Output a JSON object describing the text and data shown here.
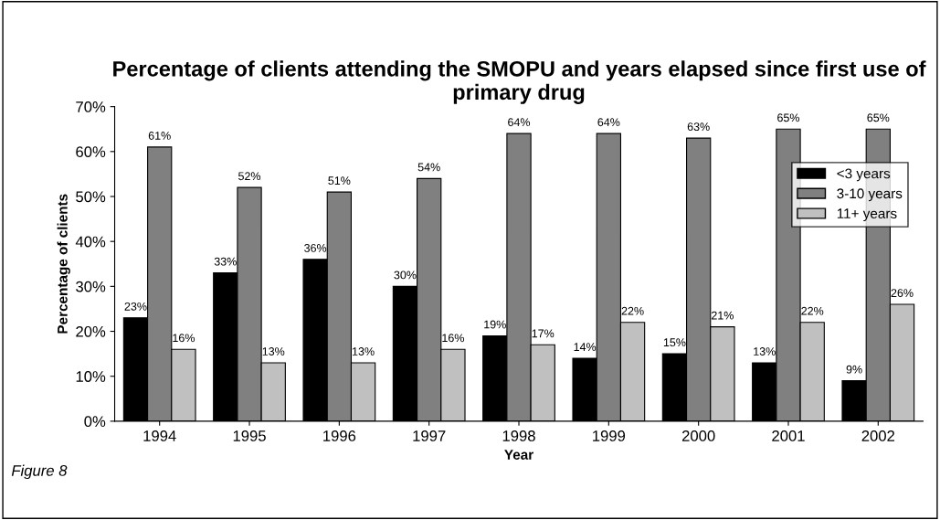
{
  "chart_data": {
    "type": "bar",
    "title": "Percentage of clients attending the SMOPU and years elapsed since first use of primary drug",
    "xlabel": "Year",
    "ylabel": "Percentage of clients",
    "categories": [
      "1994",
      "1995",
      "1996",
      "1997",
      "1998",
      "1999",
      "2000",
      "2001",
      "2002"
    ],
    "series": [
      {
        "name": "<3 years",
        "color": "#000000",
        "values": [
          23,
          33,
          36,
          30,
          19,
          14,
          15,
          13,
          9
        ],
        "value_labels": [
          "23%",
          "33%",
          "36%",
          "30%",
          "19%",
          "14%",
          "15%",
          "13%",
          "9%"
        ]
      },
      {
        "name": "3-10 years",
        "color": "#808080",
        "values": [
          61,
          52,
          51,
          54,
          64,
          64,
          63,
          65,
          65
        ],
        "value_labels": [
          "61%",
          "52%",
          "51%",
          "54%",
          "64%",
          "64%",
          "63%",
          "65%",
          "65%"
        ]
      },
      {
        "name": "11+ years",
        "color": "#c0c0c0",
        "values": [
          16,
          13,
          13,
          16,
          17,
          22,
          21,
          22,
          26
        ],
        "value_labels": [
          "16%",
          "13%",
          "13%",
          "16%",
          "17%",
          "22%",
          "21%",
          "22%",
          "26%"
        ]
      }
    ],
    "ylim": [
      0,
      70
    ],
    "yticks": [
      {
        "value": 0,
        "label": "0%"
      },
      {
        "value": 10,
        "label": "10%"
      },
      {
        "value": 20,
        "label": "20%"
      },
      {
        "value": 30,
        "label": "30%"
      },
      {
        "value": 40,
        "label": "40%"
      },
      {
        "value": 50,
        "label": "50%"
      },
      {
        "value": 60,
        "label": "60%"
      },
      {
        "value": 70,
        "label": "70%"
      }
    ],
    "grid": false,
    "legend": "right",
    "annotations": [
      "Figure 8"
    ]
  }
}
